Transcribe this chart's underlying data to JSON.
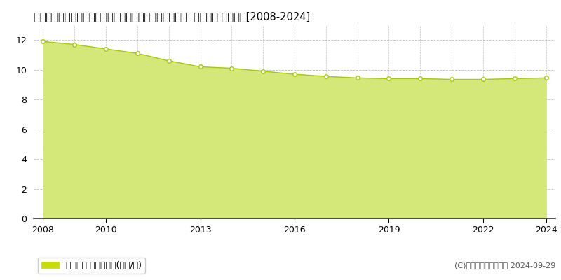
{
  "title": "佐賀県三養基郡上峰町大字坊所字二本谷２４５８番６外  基準地価 地価推移[2008-2024]",
  "years": [
    2008,
    2009,
    2010,
    2011,
    2012,
    2013,
    2014,
    2015,
    2016,
    2017,
    2018,
    2019,
    2020,
    2021,
    2022,
    2023,
    2024
  ],
  "values": [
    11.9,
    11.7,
    11.4,
    11.1,
    10.6,
    10.2,
    10.1,
    9.9,
    9.7,
    9.55,
    9.45,
    9.4,
    9.4,
    9.35,
    9.35,
    9.4,
    9.45
  ],
  "line_color": "#a8c800",
  "fill_color": "#d4e87a",
  "fill_alpha": 1.0,
  "marker_facecolor": "white",
  "marker_edgecolor": "#a8c800",
  "marker_size": 4,
  "ylim": [
    0,
    13
  ],
  "yticks": [
    0,
    2,
    4,
    6,
    8,
    10,
    12
  ],
  "xticks": [
    2008,
    2010,
    2013,
    2016,
    2019,
    2022,
    2024
  ],
  "bg_color": "#ffffff",
  "plot_bg_color": "#ffffff",
  "grid_color": "#aaaaaa",
  "legend_label": "基準地価 平均坪単価(万円/坪)",
  "legend_color": "#c8dc00",
  "copyright_text": "(C)土地価格ドットコム 2024-09-29",
  "title_fontsize": 10.5,
  "tick_fontsize": 9,
  "legend_fontsize": 9
}
